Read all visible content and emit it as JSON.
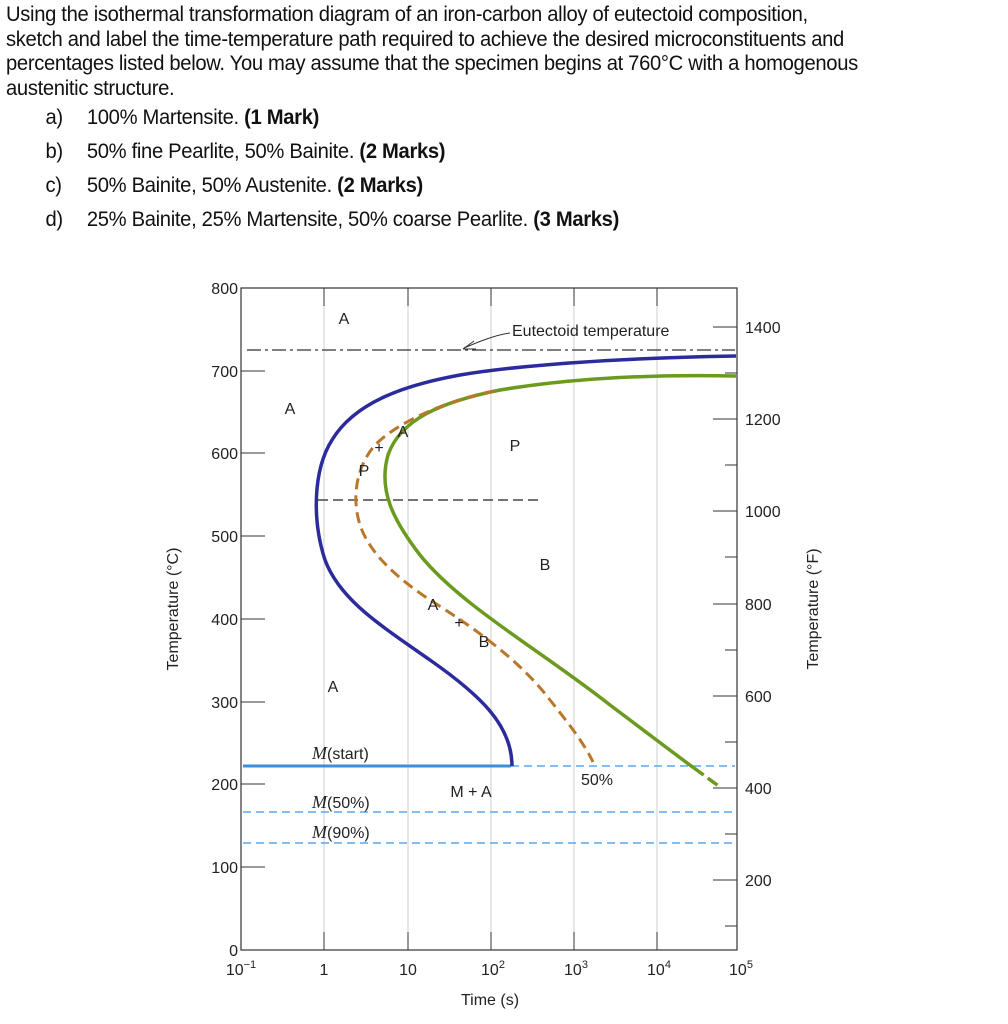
{
  "question": {
    "intro_lines": [
      "Using the isothermal transformation diagram of an iron-carbon alloy of eutectoid composition,",
      "sketch and label the time-temperature path required to achieve the desired microconstituents and",
      "percentages listed below. You may assume that the specimen begins at 760°C with a homogenous",
      "austenitic structure."
    ],
    "parts": [
      {
        "letter": "a)",
        "text": "100% Martensite.",
        "marks": "(1 Mark)"
      },
      {
        "letter": "b)",
        "text": "50% fine Pearlite, 50% Bainite.",
        "marks": "(2 Marks)"
      },
      {
        "letter": "c)",
        "text": "50% Bainite, 50% Austenite.",
        "marks": "(2 Marks)"
      },
      {
        "letter": "d)",
        "text": "25% Bainite, 25% Martensite, 50% coarse Pearlite.",
        "marks": "(3 Marks)"
      }
    ]
  },
  "diagram": {
    "y_axis_left_label": "Temperature (°C)",
    "y_axis_right_label": "Temperature (°F)",
    "x_axis_label": "Time (s)",
    "left_ticks": [
      "0",
      "100",
      "200",
      "300",
      "400",
      "500",
      "600",
      "700",
      "800"
    ],
    "right_ticks": [
      "200",
      "400",
      "600",
      "800",
      "1000",
      "1200",
      "1400"
    ],
    "x_ticks": [
      {
        "base": "10",
        "exp": "−1"
      },
      {
        "base": "1",
        "exp": ""
      },
      {
        "base": "10",
        "exp": ""
      },
      {
        "base": "10",
        "exp": "2"
      },
      {
        "base": "10",
        "exp": "3"
      },
      {
        "base": "10",
        "exp": "4"
      },
      {
        "base": "10",
        "exp": "5"
      }
    ],
    "labels": {
      "a_top": "A",
      "a_left": "A",
      "a_low": "A",
      "p_region": "P",
      "b_region": "B",
      "eutectoid": "Eutectoid temperature",
      "pa_p": "P",
      "pa_plus": "+",
      "pa_a": "A",
      "ab_a": "A",
      "ab_plus": "+",
      "ab_b": "B",
      "m_start": "(start)",
      "m_50": "(50%)",
      "m_90": "(90%)",
      "m_letter": "M",
      "m_plus_a": "M + A",
      "fifty_percent": "50%"
    },
    "colors": {
      "start_curve": "#2b2b9c",
      "finish_curve": "#6b9a1f",
      "fifty_curve": "#b8782a",
      "martensite_start": "#3b8fe0",
      "martensite_dashed": "#5aa7ee",
      "grid": "#cfcfcf"
    }
  }
}
